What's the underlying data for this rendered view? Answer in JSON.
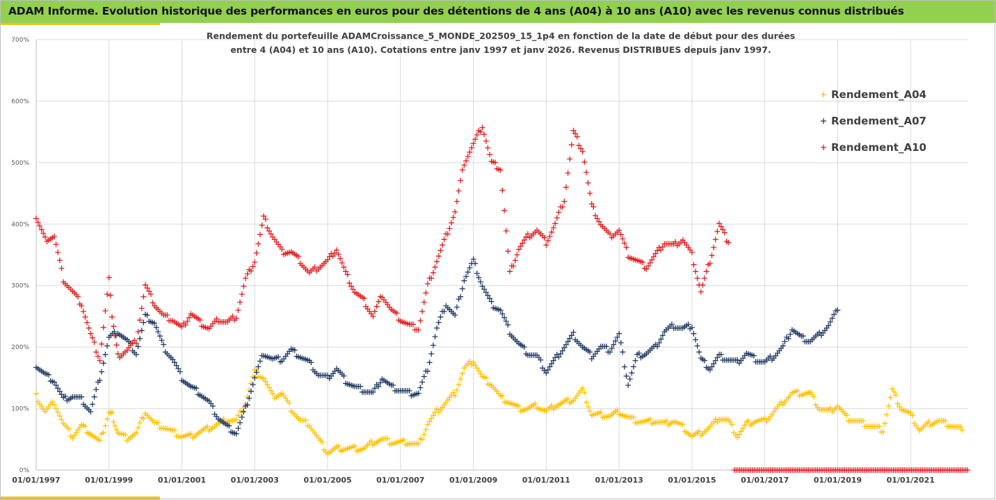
{
  "banner": {
    "title": "ADAM Informe. Evolution historique des performances en euros pour des détentions de 4 ans (A04) à 10 ans (A10) avec les revenus connus distribués",
    "color": "#92d050",
    "accent_color": "#f0c020"
  },
  "chart_data": {
    "type": "scatter",
    "title": "",
    "subtitle_lines": [
      "Rendement du portefeuille ADAMCroissance_5_MONDE_202509_15_1p4  en fonction de la date de début pour des durées",
      "entre 4 (A04) et 10 ans (A10). Cotations entre janv 1997 et janv 2026. Revenus DISTRIBUES depuis janv 1997."
    ],
    "xlabel": "",
    "ylabel": "",
    "x_range": [
      "1997-01-01",
      "2022-08-01"
    ],
    "ylim": [
      0,
      700
    ],
    "y_ticks": [
      "0%",
      "100%",
      "200%",
      "300%",
      "400%",
      "500%",
      "600%",
      "700%"
    ],
    "x_ticks": [
      "01/01/1997",
      "01/01/1999",
      "01/01/2001",
      "01/01/2003",
      "01/01/2005",
      "01/01/2007",
      "01/01/2009",
      "01/01/2011",
      "01/01/2013",
      "01/01/2015",
      "01/01/2017",
      "01/01/2019",
      "01/01/2021"
    ],
    "grid": true,
    "legend_position": "top-right",
    "marker": "+",
    "series": [
      {
        "name": "Rendement_A04",
        "color": "#ffc000",
        "end": "2022-06-01",
        "points": [
          [
            "1997-01-01",
            120
          ],
          [
            "1997-04-01",
            95
          ],
          [
            "1997-07-01",
            110
          ],
          [
            "1997-10-01",
            75
          ],
          [
            "1998-01-01",
            55
          ],
          [
            "1998-04-01",
            72
          ],
          [
            "1998-07-01",
            60
          ],
          [
            "1998-10-01",
            45
          ],
          [
            "1999-01-01",
            95
          ],
          [
            "1999-02-01",
            90
          ],
          [
            "1999-04-01",
            60
          ],
          [
            "1999-07-01",
            52
          ],
          [
            "1999-10-01",
            60
          ],
          [
            "2000-01-01",
            95
          ],
          [
            "2000-04-01",
            75
          ],
          [
            "2000-07-01",
            70
          ],
          [
            "2000-10-01",
            62
          ],
          [
            "2001-01-01",
            55
          ],
          [
            "2001-04-01",
            55
          ],
          [
            "2001-07-01",
            62
          ],
          [
            "2001-10-01",
            68
          ],
          [
            "2002-01-01",
            75
          ],
          [
            "2002-04-01",
            82
          ],
          [
            "2002-07-01",
            80
          ],
          [
            "2002-10-01",
            110
          ],
          [
            "2003-01-01",
            160
          ],
          [
            "2003-04-01",
            150
          ],
          [
            "2003-07-01",
            120
          ],
          [
            "2003-10-01",
            125
          ],
          [
            "2004-01-01",
            100
          ],
          [
            "2004-04-01",
            80
          ],
          [
            "2004-07-01",
            75
          ],
          [
            "2004-10-01",
            50
          ],
          [
            "2005-01-01",
            28
          ],
          [
            "2005-04-01",
            35
          ],
          [
            "2005-07-01",
            35
          ],
          [
            "2005-10-01",
            35
          ],
          [
            "2006-01-01",
            35
          ],
          [
            "2006-04-01",
            45
          ],
          [
            "2006-07-01",
            50
          ],
          [
            "2006-10-01",
            45
          ],
          [
            "2007-01-01",
            45
          ],
          [
            "2007-04-01",
            45
          ],
          [
            "2007-07-01",
            40
          ],
          [
            "2007-10-01",
            75
          ],
          [
            "2008-01-01",
            95
          ],
          [
            "2008-04-01",
            110
          ],
          [
            "2008-07-01",
            125
          ],
          [
            "2008-10-01",
            165
          ],
          [
            "2009-01-01",
            178
          ],
          [
            "2009-04-01",
            150
          ],
          [
            "2009-07-01",
            140
          ],
          [
            "2009-10-01",
            118
          ],
          [
            "2010-01-01",
            110
          ],
          [
            "2010-04-01",
            100
          ],
          [
            "2010-07-01",
            100
          ],
          [
            "2010-10-01",
            105
          ],
          [
            "2011-01-01",
            95
          ],
          [
            "2011-04-01",
            105
          ],
          [
            "2011-07-01",
            110
          ],
          [
            "2011-10-01",
            115
          ],
          [
            "2012-01-01",
            130
          ],
          [
            "2012-04-01",
            90
          ],
          [
            "2012-07-01",
            90
          ],
          [
            "2012-10-01",
            88
          ],
          [
            "2013-01-01",
            95
          ],
          [
            "2013-04-01",
            85
          ],
          [
            "2013-07-01",
            80
          ],
          [
            "2013-10-01",
            78
          ],
          [
            "2014-01-01",
            80
          ],
          [
            "2014-04-01",
            75
          ],
          [
            "2014-07-01",
            80
          ],
          [
            "2014-10-01",
            70
          ],
          [
            "2015-01-01",
            55
          ],
          [
            "2015-04-01",
            60
          ],
          [
            "2015-07-01",
            70
          ],
          [
            "2015-10-01",
            85
          ],
          [
            "2016-01-01",
            80
          ],
          [
            "2016-04-01",
            55
          ],
          [
            "2016-07-01",
            75
          ],
          [
            "2016-10-01",
            80
          ],
          [
            "2017-01-01",
            80
          ],
          [
            "2017-04-01",
            95
          ],
          [
            "2017-07-01",
            110
          ],
          [
            "2017-10-01",
            125
          ],
          [
            "2018-01-01",
            125
          ],
          [
            "2018-04-01",
            125
          ],
          [
            "2018-07-01",
            100
          ],
          [
            "2018-10-01",
            95
          ],
          [
            "2019-01-01",
            105
          ],
          [
            "2019-04-01",
            85
          ],
          [
            "2019-07-01",
            80
          ],
          [
            "2019-10-01",
            75
          ],
          [
            "2020-01-01",
            70
          ],
          [
            "2020-04-01",
            65
          ],
          [
            "2020-07-01",
            130
          ],
          [
            "2020-10-01",
            100
          ],
          [
            "2021-01-01",
            90
          ],
          [
            "2021-04-01",
            65
          ],
          [
            "2021-07-01",
            75
          ],
          [
            "2021-10-01",
            80
          ],
          [
            "2022-01-01",
            75
          ],
          [
            "2022-06-01",
            65
          ]
        ]
      },
      {
        "name": "Rendement_A07",
        "color": "#203864",
        "end": "2019-01-01",
        "points": [
          [
            "1997-01-01",
            170
          ],
          [
            "1997-04-01",
            155
          ],
          [
            "1997-07-01",
            145
          ],
          [
            "1997-10-01",
            115
          ],
          [
            "1998-01-01",
            120
          ],
          [
            "1998-04-01",
            115
          ],
          [
            "1998-07-01",
            95
          ],
          [
            "1998-10-01",
            150
          ],
          [
            "1999-01-01",
            215
          ],
          [
            "1999-04-01",
            225
          ],
          [
            "1999-07-01",
            210
          ],
          [
            "1999-10-01",
            190
          ],
          [
            "2000-01-01",
            250
          ],
          [
            "2000-04-01",
            240
          ],
          [
            "2000-07-01",
            200
          ],
          [
            "2000-10-01",
            180
          ],
          [
            "2001-01-01",
            150
          ],
          [
            "2001-04-01",
            135
          ],
          [
            "2001-07-01",
            125
          ],
          [
            "2001-10-01",
            110
          ],
          [
            "2002-01-01",
            85
          ],
          [
            "2002-04-01",
            70
          ],
          [
            "2002-07-01",
            60
          ],
          [
            "2002-10-01",
            100
          ],
          [
            "2003-01-01",
            150
          ],
          [
            "2003-04-01",
            190
          ],
          [
            "2003-07-01",
            180
          ],
          [
            "2003-10-01",
            180
          ],
          [
            "2004-01-01",
            195
          ],
          [
            "2004-04-01",
            185
          ],
          [
            "2004-07-01",
            175
          ],
          [
            "2004-10-01",
            155
          ],
          [
            "2005-01-01",
            150
          ],
          [
            "2005-04-01",
            165
          ],
          [
            "2005-07-01",
            145
          ],
          [
            "2005-10-01",
            135
          ],
          [
            "2006-01-01",
            130
          ],
          [
            "2006-04-01",
            125
          ],
          [
            "2006-07-01",
            150
          ],
          [
            "2006-10-01",
            135
          ],
          [
            "2007-01-01",
            130
          ],
          [
            "2007-04-01",
            125
          ],
          [
            "2007-07-01",
            125
          ],
          [
            "2007-10-01",
            165
          ],
          [
            "2008-01-01",
            230
          ],
          [
            "2008-04-01",
            270
          ],
          [
            "2008-07-01",
            250
          ],
          [
            "2008-10-01",
            310
          ],
          [
            "2009-01-01",
            340
          ],
          [
            "2009-04-01",
            300
          ],
          [
            "2009-07-01",
            270
          ],
          [
            "2009-10-01",
            260
          ],
          [
            "2010-01-01",
            225
          ],
          [
            "2010-04-01",
            205
          ],
          [
            "2010-07-01",
            190
          ],
          [
            "2010-10-01",
            185
          ],
          [
            "2011-01-01",
            160
          ],
          [
            "2011-04-01",
            180
          ],
          [
            "2011-07-01",
            200
          ],
          [
            "2011-10-01",
            220
          ],
          [
            "2012-01-01",
            200
          ],
          [
            "2012-04-01",
            185
          ],
          [
            "2012-07-01",
            200
          ],
          [
            "2012-10-01",
            195
          ],
          [
            "2013-01-01",
            220
          ],
          [
            "2013-04-01",
            140
          ],
          [
            "2013-07-01",
            185
          ],
          [
            "2013-10-01",
            190
          ],
          [
            "2014-01-01",
            200
          ],
          [
            "2014-04-01",
            225
          ],
          [
            "2014-07-01",
            235
          ],
          [
            "2014-10-01",
            230
          ],
          [
            "2015-01-01",
            235
          ],
          [
            "2015-04-01",
            180
          ],
          [
            "2015-07-01",
            165
          ],
          [
            "2015-10-01",
            185
          ],
          [
            "2016-01-01",
            180
          ],
          [
            "2016-04-01",
            175
          ],
          [
            "2016-07-01",
            190
          ],
          [
            "2016-10-01",
            180
          ],
          [
            "2017-01-01",
            175
          ],
          [
            "2017-04-01",
            185
          ],
          [
            "2017-07-01",
            200
          ],
          [
            "2017-10-01",
            230
          ],
          [
            "2018-01-01",
            215
          ],
          [
            "2018-04-01",
            210
          ],
          [
            "2018-07-01",
            220
          ],
          [
            "2018-10-01",
            235
          ],
          [
            "2019-01-01",
            260
          ]
        ]
      },
      {
        "name": "Rendement_A10",
        "color": "#e31a1c",
        "end": "2016-01-01",
        "points": [
          [
            "1997-01-01",
            410
          ],
          [
            "1997-04-01",
            375
          ],
          [
            "1997-07-01",
            380
          ],
          [
            "1997-10-01",
            310
          ],
          [
            "1998-01-01",
            290
          ],
          [
            "1998-04-01",
            270
          ],
          [
            "1998-07-01",
            220
          ],
          [
            "1998-10-01",
            180
          ],
          [
            "1999-01-01",
            310
          ],
          [
            "1999-02-01",
            250
          ],
          [
            "1999-04-01",
            185
          ],
          [
            "1999-07-01",
            195
          ],
          [
            "1999-10-01",
            210
          ],
          [
            "2000-01-01",
            300
          ],
          [
            "2000-04-01",
            270
          ],
          [
            "2000-07-01",
            250
          ],
          [
            "2000-10-01",
            245
          ],
          [
            "2001-01-01",
            230
          ],
          [
            "2001-04-01",
            255
          ],
          [
            "2001-07-01",
            240
          ],
          [
            "2001-10-01",
            230
          ],
          [
            "2002-01-01",
            245
          ],
          [
            "2002-04-01",
            240
          ],
          [
            "2002-07-01",
            250
          ],
          [
            "2002-10-01",
            310
          ],
          [
            "2003-01-01",
            340
          ],
          [
            "2003-04-01",
            410
          ],
          [
            "2003-07-01",
            380
          ],
          [
            "2003-10-01",
            355
          ],
          [
            "2004-01-01",
            355
          ],
          [
            "2004-04-01",
            340
          ],
          [
            "2004-07-01",
            320
          ],
          [
            "2004-10-01",
            330
          ],
          [
            "2005-01-01",
            340
          ],
          [
            "2005-04-01",
            360
          ],
          [
            "2005-07-01",
            320
          ],
          [
            "2005-10-01",
            290
          ],
          [
            "2006-01-01",
            275
          ],
          [
            "2006-04-01",
            250
          ],
          [
            "2006-07-01",
            285
          ],
          [
            "2006-10-01",
            260
          ],
          [
            "2007-01-01",
            245
          ],
          [
            "2007-04-01",
            235
          ],
          [
            "2007-07-01",
            230
          ],
          [
            "2007-10-01",
            300
          ],
          [
            "2008-01-01",
            340
          ],
          [
            "2008-04-01",
            380
          ],
          [
            "2008-07-01",
            420
          ],
          [
            "2008-10-01",
            500
          ],
          [
            "2009-01-01",
            530
          ],
          [
            "2009-04-01",
            560
          ],
          [
            "2009-07-01",
            500
          ],
          [
            "2009-10-01",
            490
          ],
          [
            "2010-01-01",
            320
          ],
          [
            "2010-04-01",
            360
          ],
          [
            "2010-07-01",
            380
          ],
          [
            "2010-10-01",
            390
          ],
          [
            "2011-01-01",
            370
          ],
          [
            "2011-04-01",
            400
          ],
          [
            "2011-07-01",
            440
          ],
          [
            "2011-10-01",
            550
          ],
          [
            "2012-01-01",
            520
          ],
          [
            "2012-04-01",
            430
          ],
          [
            "2012-07-01",
            400
          ],
          [
            "2012-10-01",
            380
          ],
          [
            "2013-01-01",
            390
          ],
          [
            "2013-04-01",
            350
          ],
          [
            "2013-07-01",
            340
          ],
          [
            "2013-10-01",
            330
          ],
          [
            "2014-01-01",
            350
          ],
          [
            "2014-04-01",
            370
          ],
          [
            "2014-07-01",
            365
          ],
          [
            "2014-10-01",
            375
          ],
          [
            "2015-01-01",
            350
          ],
          [
            "2015-04-01",
            290
          ],
          [
            "2015-07-01",
            340
          ],
          [
            "2015-10-01",
            400
          ],
          [
            "2016-01-01",
            370
          ]
        ],
        "zero_segment": {
          "from": "2016-03-01",
          "to": "2022-08-01",
          "value": 0
        }
      }
    ]
  }
}
